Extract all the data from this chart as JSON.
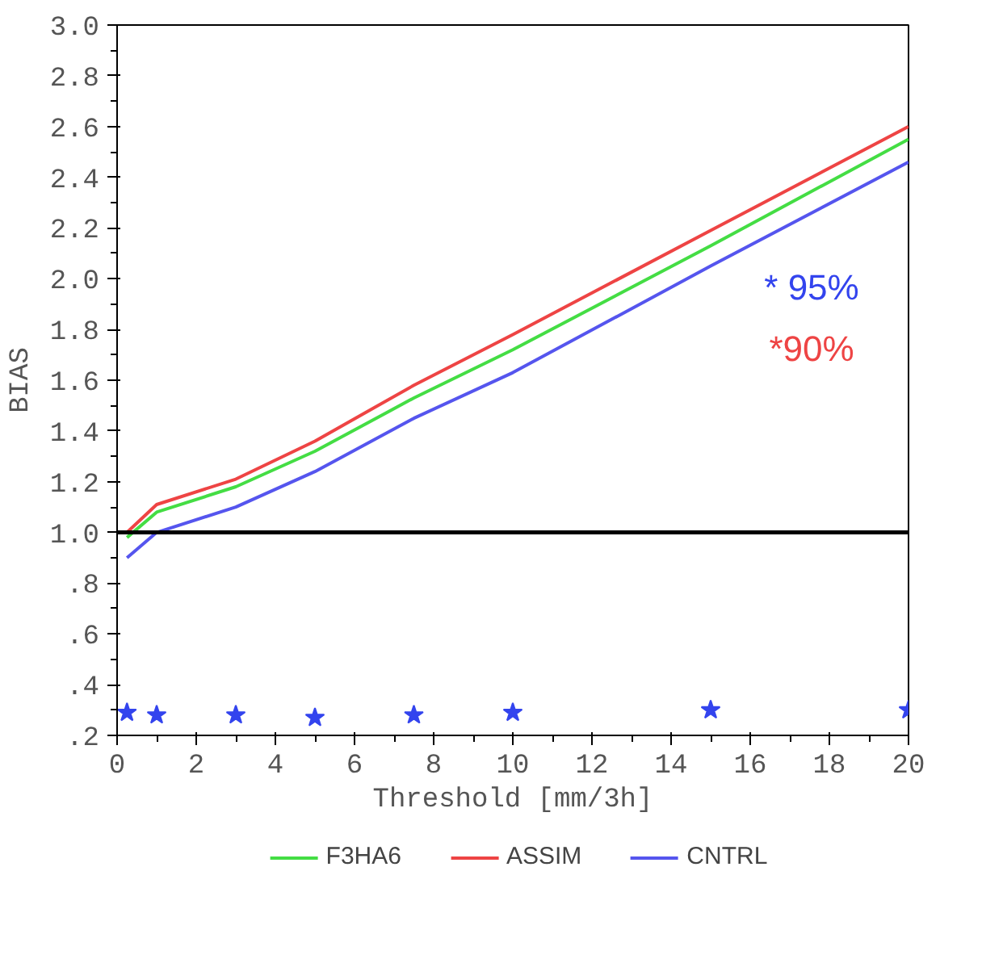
{
  "chart_data": {
    "type": "line",
    "xlabel": "Threshold [mm/3h]",
    "ylabel": "BIAS",
    "x": [
      0.25,
      1,
      3,
      5,
      7.5,
      10,
      15,
      20
    ],
    "series": [
      {
        "name": "F3HA6",
        "color": "#44dd44",
        "values": [
          0.98,
          1.08,
          1.18,
          1.32,
          1.53,
          1.72,
          2.13,
          2.55
        ]
      },
      {
        "name": "ASSIM",
        "color": "#ee4444",
        "values": [
          1.0,
          1.11,
          1.21,
          1.36,
          1.58,
          1.78,
          2.19,
          2.6
        ]
      },
      {
        "name": "CNTRL",
        "color": "#5555ee",
        "values": [
          0.9,
          1.0,
          1.1,
          1.24,
          1.45,
          1.63,
          2.05,
          2.46
        ]
      },
      {
        "type": "scatter",
        "marker": "star",
        "color": "#3344ee",
        "values": [
          0.29,
          0.28,
          0.28,
          0.27,
          0.28,
          0.29,
          0.3,
          0.3
        ]
      }
    ],
    "xlim": [
      0,
      20
    ],
    "ylim": [
      0.2,
      3.0
    ],
    "xticks": [
      0,
      2,
      4,
      6,
      8,
      10,
      12,
      14,
      16,
      18,
      20
    ],
    "yticks": [
      {
        "value": 0.2,
        "label": ".2"
      },
      {
        "value": 0.4,
        "label": ".4"
      },
      {
        "value": 0.6,
        "label": ".6"
      },
      {
        "value": 0.8,
        "label": ".8"
      },
      {
        "value": 1.0,
        "label": "1.0"
      },
      {
        "value": 1.2,
        "label": "1.2"
      },
      {
        "value": 1.4,
        "label": "1.4"
      },
      {
        "value": 1.6,
        "label": "1.6"
      },
      {
        "value": 1.8,
        "label": "1.8"
      },
      {
        "value": 2.0,
        "label": "2.0"
      },
      {
        "value": 2.2,
        "label": "2.2"
      },
      {
        "value": 2.4,
        "label": "2.4"
      },
      {
        "value": 2.6,
        "label": "2.6"
      },
      {
        "value": 2.8,
        "label": "2.8"
      },
      {
        "value": 3.0,
        "label": "3.0"
      }
    ],
    "ref_lines": [
      {
        "axis": "y",
        "value": 1.0,
        "color": "#000000"
      }
    ],
    "annotations": [
      "* 95%",
      "*90%"
    ],
    "grid": false,
    "legend": "bottom",
    "marker": "none",
    "line_style": "solid"
  }
}
